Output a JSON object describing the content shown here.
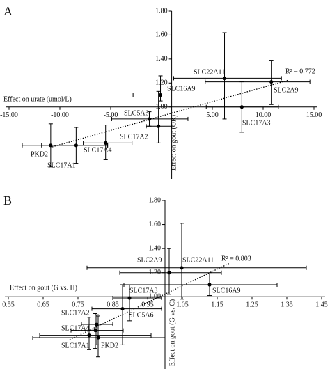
{
  "chart_data": [
    {
      "type": "scatter",
      "panel": "A",
      "xlabel": "Effect on urate (umol/L)",
      "ylabel": "Effect on gout (OR)",
      "annotation": "R² = 0.772",
      "xlim": [
        -15,
        15
      ],
      "ylim": [
        0.4,
        1.8
      ],
      "xticks": [
        {
          "value": -15,
          "label": "-15.00"
        },
        {
          "value": -10,
          "label": "-10.00"
        },
        {
          "value": -5,
          "label": "-5.00"
        },
        {
          "value": 5,
          "label": "5.00"
        },
        {
          "value": 10,
          "label": "10.00"
        },
        {
          "value": 15,
          "label": "15.00"
        }
      ],
      "yticks": [
        {
          "value": 1.0,
          "label": "1.00"
        },
        {
          "value": 1.2,
          "label": "1.20"
        },
        {
          "value": 1.4,
          "label": "1.40"
        },
        {
          "value": 1.6,
          "label": "1.60"
        },
        {
          "value": 1.8,
          "label": "1.80"
        }
      ],
      "points": [
        {
          "name": "SLC22A11",
          "x": 6.2,
          "y": 1.24,
          "x_low": 1.2,
          "x_high": 11.8,
          "y_low": 0.9,
          "y_high": 1.62
        },
        {
          "name": "SLC2A9",
          "x": 10.8,
          "y": 1.21,
          "x_low": 4.3,
          "x_high": 14.6,
          "y_low": 1.02,
          "y_high": 1.39
        },
        {
          "name": "SLC17A3",
          "x": 7.9,
          "y": 1.0,
          "x_low": 4.4,
          "x_high": 11.5,
          "y_low": 0.79,
          "y_high": 1.21
        },
        {
          "name": "SLC16A9",
          "x": -0.1,
          "y": 1.1,
          "x_low": -2.8,
          "x_high": 2.5,
          "y_low": 1.05,
          "y_high": 1.26
        },
        {
          "name": "SLC5A6",
          "x": -1.2,
          "y": 0.9,
          "x_low": -4.9,
          "x_high": 2.6,
          "y_low": 0.84,
          "y_high": 0.96
        },
        {
          "name": "SLC17A2",
          "x": -0.3,
          "y": 0.84,
          "x_low": -1.5,
          "x_high": 1.0,
          "y_low": 0.7,
          "y_high": 1.13
        },
        {
          "name": "SLC17A4",
          "x": -5.5,
          "y": 0.7,
          "x_low": -7.7,
          "x_high": -2.9,
          "y_low": 0.56,
          "y_high": 0.85
        },
        {
          "name": "SLC17A1",
          "x": -8.4,
          "y": 0.68,
          "x_low": -11.8,
          "x_high": -5.3,
          "y_low": 0.53,
          "y_high": 0.83
        },
        {
          "name": "PKD2",
          "x": -10.9,
          "y": 0.68,
          "x_low": -13.7,
          "x_high": -5.3,
          "y_low": 0.5,
          "y_high": 0.86
        }
      ]
    },
    {
      "type": "scatter",
      "panel": "B",
      "xlabel": "Effect on gout (G vs. H)",
      "ylabel": "Effect on gout (G vs. C)",
      "annotation": "R² = 0.803",
      "xlim": [
        0.55,
        1.45
      ],
      "ylim": [
        0.4,
        1.8
      ],
      "xticks": [
        0.55,
        0.65,
        0.75,
        0.85,
        0.95,
        1.05,
        1.15,
        1.25,
        1.35,
        1.45
      ],
      "yticks": [
        {
          "value": 1.0,
          "label": "1.00"
        },
        {
          "value": 1.2,
          "label": "1.20"
        },
        {
          "value": 1.4,
          "label": "1.40"
        },
        {
          "value": 1.6,
          "label": "1.60"
        },
        {
          "value": 1.8,
          "label": "1.80"
        }
      ],
      "points": [
        {
          "name": "SLC22A11",
          "x": 1.048,
          "y": 1.24,
          "x_low": 0.776,
          "x_high": 1.406,
          "y_low": 0.98,
          "y_high": 1.61
        },
        {
          "name": "SLC2A9",
          "x": 1.012,
          "y": 1.2,
          "x_low": 0.87,
          "x_high": 1.162,
          "y_low": 1.02,
          "y_high": 1.4
        },
        {
          "name": "SLC16A9",
          "x": 1.128,
          "y": 1.1,
          "x_low": 0.882,
          "x_high": 1.322,
          "y_low": 1.01,
          "y_high": 1.19
        },
        {
          "name": "SLC17A3",
          "x": 0.898,
          "y": 0.99,
          "x_low": 0.85,
          "x_high": 0.99,
          "y_low": 0.8,
          "y_high": 1.1
        },
        {
          "name": "SLC5A6",
          "x": 0.878,
          "y": 0.9,
          "x_low": 0.79,
          "x_high": 0.99,
          "y_low": 0.6,
          "y_high": 1.1
        },
        {
          "name": "SLC17A2",
          "x": 0.804,
          "y": 0.77,
          "x_low": 0.76,
          "x_high": 0.85,
          "y_low": 0.6,
          "y_high": 0.85
        },
        {
          "name": "SLC17A4",
          "x": 0.8,
          "y": 0.72,
          "x_low": 0.73,
          "x_high": 0.88,
          "y_low": 0.57,
          "y_high": 0.86
        },
        {
          "name": "SLC17A1",
          "x": 0.782,
          "y": 0.68,
          "x_low": 0.64,
          "x_high": 0.96,
          "y_low": 0.56,
          "y_high": 0.83
        },
        {
          "name": "PKD2",
          "x": 0.808,
          "y": 0.66,
          "x_low": 0.62,
          "x_high": 1.0,
          "y_low": 0.5,
          "y_high": 0.84
        }
      ]
    }
  ]
}
